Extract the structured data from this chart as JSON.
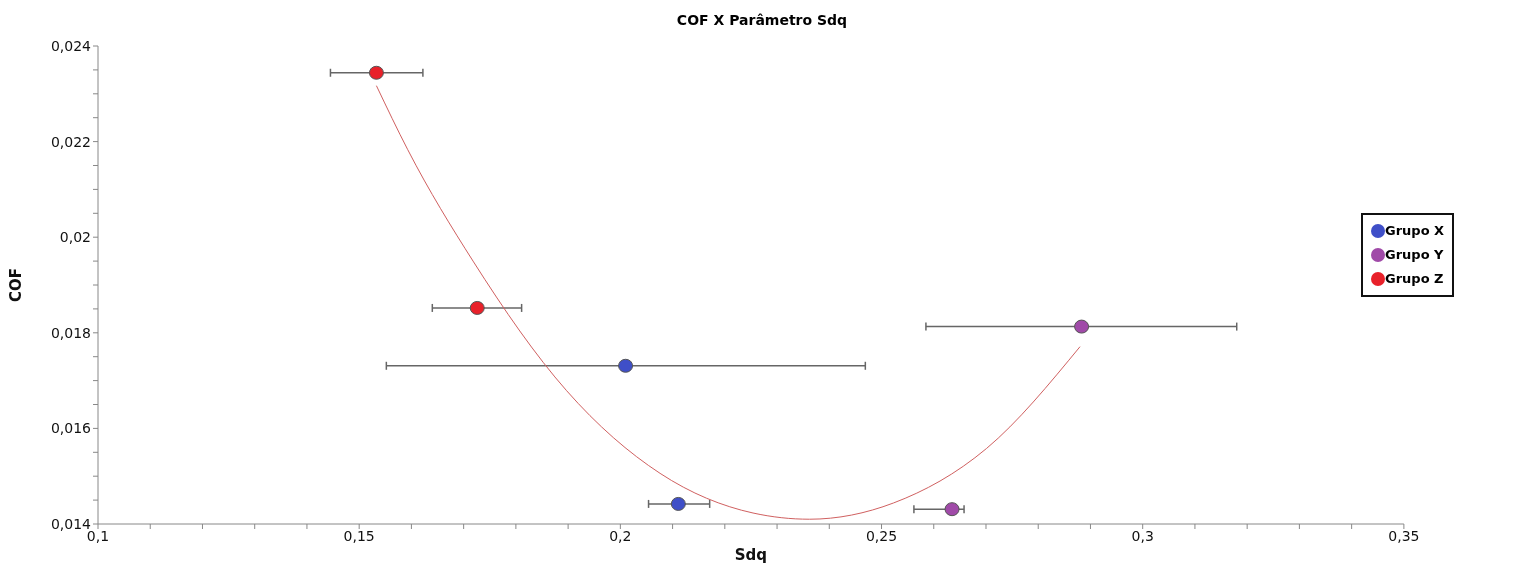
{
  "chart_data": {
    "type": "scatter",
    "title": "COF X Parâmetro Sdq",
    "xlabel": "Sdq",
    "ylabel": "COF",
    "xlim": [
      0.1,
      0.35
    ],
    "xticks": [
      {
        "value": 0.1,
        "label": "0,1"
      },
      {
        "value": 0.11,
        "label": null
      },
      {
        "value": 0.12,
        "label": null
      },
      {
        "value": 0.13,
        "label": null
      },
      {
        "value": 0.14,
        "label": null
      },
      {
        "value": 0.15,
        "label": "0,15"
      },
      {
        "value": 0.16,
        "label": null
      },
      {
        "value": 0.17,
        "label": null
      },
      {
        "value": 0.18,
        "label": null
      },
      {
        "value": 0.19,
        "label": null
      },
      {
        "value": 0.2,
        "label": "0,2"
      },
      {
        "value": 0.21,
        "label": null
      },
      {
        "value": 0.22,
        "label": null
      },
      {
        "value": 0.23,
        "label": null
      },
      {
        "value": 0.24,
        "label": null
      },
      {
        "value": 0.25,
        "label": "0,25"
      },
      {
        "value": 0.26,
        "label": null
      },
      {
        "value": 0.27,
        "label": null
      },
      {
        "value": 0.28,
        "label": null
      },
      {
        "value": 0.29,
        "label": null
      },
      {
        "value": 0.3,
        "label": "0,3"
      },
      {
        "value": 0.31,
        "label": null
      },
      {
        "value": 0.32,
        "label": null
      },
      {
        "value": 0.33,
        "label": null
      },
      {
        "value": 0.34,
        "label": null
      },
      {
        "value": 0.35,
        "label": "0,35"
      }
    ],
    "ylim": [
      0.014,
      0.024
    ],
    "yticks": [
      {
        "value": 0.014,
        "label": "0,014"
      },
      {
        "value": 0.0145,
        "label": null
      },
      {
        "value": 0.015,
        "label": null
      },
      {
        "value": 0.0155,
        "label": null
      },
      {
        "value": 0.016,
        "label": "0,016"
      },
      {
        "value": 0.0165,
        "label": null
      },
      {
        "value": 0.017,
        "label": null
      },
      {
        "value": 0.0175,
        "label": null
      },
      {
        "value": 0.018,
        "label": "0,018"
      },
      {
        "value": 0.0185,
        "label": null
      },
      {
        "value": 0.019,
        "label": null
      },
      {
        "value": 0.0195,
        "label": null
      },
      {
        "value": 0.02,
        "label": "0,02"
      },
      {
        "value": 0.0205,
        "label": null
      },
      {
        "value": 0.021,
        "label": null
      },
      {
        "value": 0.0215,
        "label": null
      },
      {
        "value": 0.022,
        "label": "0,022"
      },
      {
        "value": 0.0225,
        "label": null
      },
      {
        "value": 0.023,
        "label": null
      },
      {
        "value": 0.0235,
        "label": null
      },
      {
        "value": 0.024,
        "label": "0,024"
      }
    ],
    "grid": false,
    "legend": "right",
    "marker": "circle",
    "series": [
      {
        "name": "Grupo X",
        "color": "#3f4fc8",
        "x": [
          0.201,
          0.2111
        ],
        "values": [
          0.01731,
          0.01442
        ],
        "xerrors": [
          [
            0.1552,
            0.2469
          ],
          [
            0.2054,
            0.2171
          ]
        ]
      },
      {
        "name": "Grupo Y",
        "color": "#a04aa8",
        "x": [
          0.2883,
          0.2635
        ],
        "values": [
          0.01813,
          0.01431
        ],
        "xerrors": [
          [
            0.2585,
            0.318
          ],
          [
            0.2562,
            0.2658
          ]
        ]
      },
      {
        "name": "Grupo Z",
        "color": "#e8212a",
        "x": [
          0.1533,
          0.1726
        ],
        "values": [
          0.02344,
          0.01852
        ],
        "xerrors": [
          [
            0.1445,
            0.1622
          ],
          [
            0.164,
            0.1811
          ]
        ]
      },
      {
        "type": "line",
        "color": "#d06060",
        "line_style": "solid",
        "marker": "none",
        "x": [
          0.1533,
          0.1593,
          0.1718,
          0.1897,
          0.2076,
          0.2254,
          0.2362,
          0.2523,
          0.2701,
          0.288
        ],
        "values": [
          0.02317,
          0.02183,
          0.0195,
          0.01679,
          0.01506,
          0.01423,
          0.0141,
          0.01444,
          0.01558,
          0.01771
        ]
      }
    ]
  }
}
